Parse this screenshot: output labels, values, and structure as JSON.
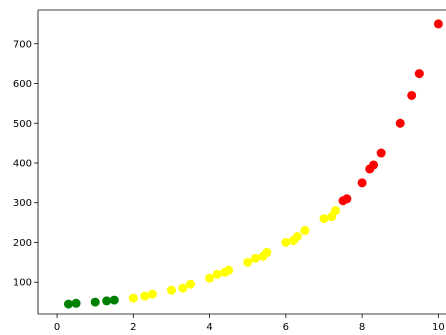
{
  "chart_data": {
    "type": "scatter",
    "title": "",
    "xlabel": "",
    "ylabel": "",
    "xlim": [
      -0.5,
      10.2
    ],
    "ylim": [
      20,
      785
    ],
    "grid": false,
    "x_ticks": [
      0,
      2,
      4,
      6,
      8,
      10
    ],
    "y_ticks": [
      100,
      200,
      300,
      400,
      500,
      600,
      700
    ],
    "colors": {
      "green": "#008000",
      "yellow": "#ffff00",
      "red": "#ff0000"
    },
    "series": [
      {
        "color_key": "green",
        "x": [
          0.3,
          0.5,
          1.0,
          1.3,
          1.5
        ],
        "y": [
          45,
          47,
          50,
          53,
          55
        ]
      },
      {
        "color_key": "yellow",
        "x": [
          2.0,
          2.3,
          2.5,
          3.0,
          3.3,
          3.5,
          4.0,
          4.2,
          4.4,
          4.5,
          5.0,
          5.2,
          5.4,
          5.5,
          6.0,
          6.2,
          6.3,
          6.5,
          7.0,
          7.2,
          7.3
        ],
        "y": [
          60,
          65,
          70,
          80,
          85,
          95,
          110,
          120,
          125,
          130,
          150,
          160,
          165,
          175,
          200,
          205,
          215,
          230,
          260,
          265,
          280
        ]
      },
      {
        "color_key": "red",
        "x": [
          7.5,
          7.6,
          8.0,
          8.2,
          8.3,
          8.5,
          9.0,
          9.3,
          9.5,
          10.0
        ],
        "y": [
          305,
          310,
          350,
          385,
          395,
          425,
          500,
          570,
          625,
          750
        ]
      }
    ]
  }
}
